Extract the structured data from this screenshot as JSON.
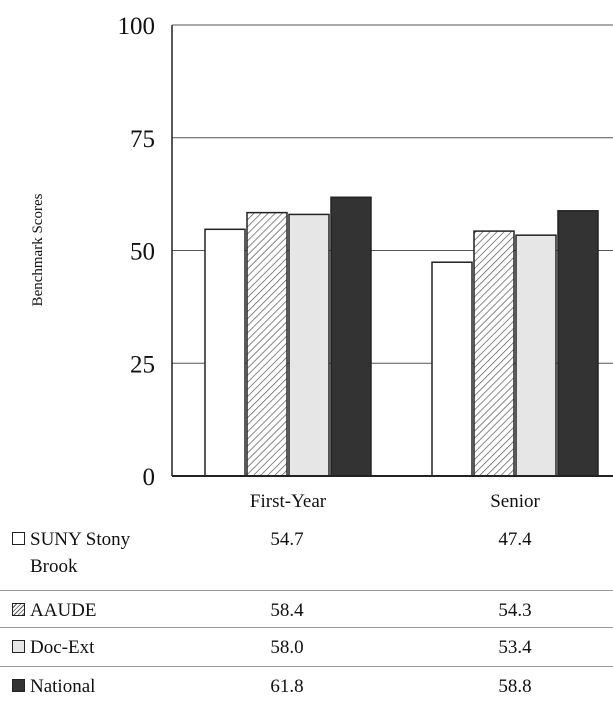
{
  "chart_data": {
    "type": "bar",
    "ylabel": "Benchmark Scores",
    "ylim": [
      0,
      100
    ],
    "yticks": [
      "0",
      "25",
      "50",
      "75",
      "100"
    ],
    "categories": [
      "First-Year",
      "Senior"
    ],
    "grid": "horizontal",
    "legend": "table below chart",
    "series": [
      {
        "name": "SUNY Stony Brook",
        "values": [
          54.7,
          47.4
        ],
        "display": [
          "54.7",
          "47.4"
        ],
        "fill": "#ffffff",
        "pattern": "none"
      },
      {
        "name": "AAUDE",
        "values": [
          58.4,
          54.3
        ],
        "display": [
          "58.4",
          "54.3"
        ],
        "fill": "#ffffff",
        "pattern": "hatch"
      },
      {
        "name": "Doc-Ext",
        "values": [
          58.0,
          53.4
        ],
        "display": [
          "58.0",
          "53.4"
        ],
        "fill": "#e6e6e6",
        "pattern": "none"
      },
      {
        "name": "National",
        "values": [
          61.8,
          58.8
        ],
        "display": [
          "61.8",
          "58.8"
        ],
        "fill": "#333333",
        "pattern": "none"
      }
    ]
  }
}
